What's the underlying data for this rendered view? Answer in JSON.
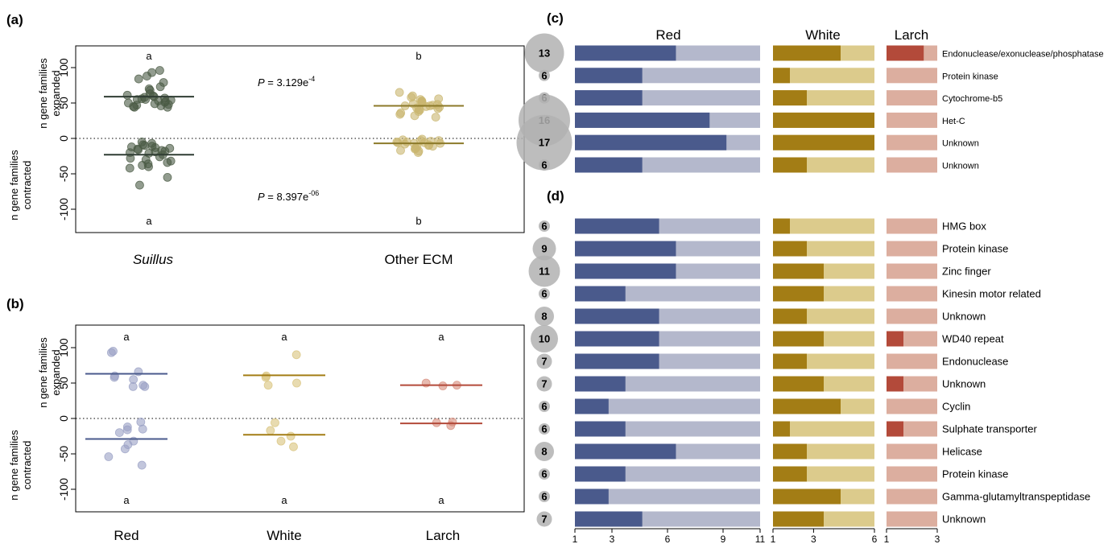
{
  "colors": {
    "suillus": "#4a5a44",
    "other_ecm": "#c9b66f",
    "red": "#4a5a8c",
    "red_light": "#b4b8cc",
    "white": "#a37d15",
    "white_light": "#dccb8c",
    "larch": "#b34a3a",
    "larch_light": "#dcae9f",
    "circle": "#b2b2b2"
  },
  "panel_a": {
    "label": "(a)",
    "y_label_top": [
      "n gene families",
      "expanded"
    ],
    "y_label_bottom": [
      "n gene families",
      "contracted"
    ],
    "y_ticks": [
      "100",
      "50",
      "0",
      "-50",
      "-100"
    ],
    "group_labels": [
      "Suillus",
      "Other ECM"
    ],
    "p_top": {
      "prefix": "P",
      "text": " = 3.129e",
      "sup": "-4"
    },
    "p_bottom": {
      "prefix": "P",
      "text": " = 8.397e",
      "sup": "-06"
    },
    "letters_top": [
      "a",
      "b"
    ],
    "letters_bottom": [
      "a",
      "b"
    ]
  },
  "panel_b": {
    "label": "(b)",
    "y_label_top": [
      "n gene families",
      "expanded"
    ],
    "y_label_bottom": [
      "n gene families",
      "contracted"
    ],
    "y_ticks": [
      "100",
      "50",
      "0",
      "-50",
      "-100"
    ],
    "group_labels": [
      "Red",
      "White",
      "Larch"
    ],
    "letters_top": [
      "a",
      "a",
      "a"
    ],
    "letters_bottom": [
      "a",
      "a",
      "a"
    ]
  },
  "panel_c": {
    "label": "(c)",
    "column_headers": [
      "Red",
      "White",
      "Larch"
    ]
  },
  "panel_d": {
    "label": "(d)",
    "x_ticks_red": [
      "1",
      "3",
      "6",
      "9",
      "11"
    ],
    "x_ticks_white": [
      "1",
      "3",
      "6"
    ],
    "x_ticks_larch": [
      "1",
      "3"
    ]
  },
  "chart_data": [
    {
      "panel": "a",
      "type": "scatter",
      "ylim": [
        -125,
        125
      ],
      "series": [
        {
          "name": "Suillus",
          "expanded": [
            96,
            93,
            88,
            84,
            79,
            73,
            70,
            68,
            63,
            61,
            60,
            59,
            58,
            57,
            56,
            55,
            55,
            54,
            53,
            52,
            51,
            50,
            49,
            48,
            47,
            46,
            45,
            44,
            44
          ],
          "contracted": [
            -5,
            -7,
            -9,
            -10,
            -11,
            -12,
            -13,
            -14,
            -15,
            -16,
            -17,
            -18,
            -19,
            -20,
            -21,
            -23,
            -26,
            -28,
            -30,
            -32,
            -34,
            -36,
            -38,
            -40,
            -42,
            -55,
            -66
          ],
          "median_expanded": 59,
          "median_contracted": -23
        },
        {
          "name": "Other ECM",
          "expanded": [
            65,
            60,
            58,
            56,
            55,
            53,
            52,
            51,
            50,
            49,
            48,
            47,
            46,
            46,
            45,
            44,
            43,
            42,
            41,
            40,
            38,
            36,
            34,
            32,
            30
          ],
          "contracted": [
            -1,
            -2,
            -3,
            -4,
            -5,
            -6,
            -6,
            -7,
            -8,
            -9,
            -10,
            -11,
            -12,
            -13,
            -14,
            -15,
            -17,
            -18,
            -20,
            -3,
            -5,
            -7
          ],
          "median_expanded": 46,
          "median_contracted": -7
        }
      ]
    },
    {
      "panel": "b",
      "type": "scatter",
      "ylim": [
        -125,
        125
      ],
      "series": [
        {
          "name": "Red",
          "expanded": [
            95,
            93,
            66,
            60,
            58,
            55,
            47,
            45,
            45
          ],
          "contracted": [
            -5,
            -12,
            -15,
            -16,
            -20,
            -32,
            -37,
            -43,
            -54,
            -66
          ],
          "median_expanded": 63,
          "median_contracted": -29
        },
        {
          "name": "White",
          "expanded": [
            90,
            60,
            58,
            50,
            47
          ],
          "contracted": [
            -6,
            -17,
            -25,
            -32,
            -40
          ],
          "median_expanded": 61,
          "median_contracted": -23
        },
        {
          "name": "Larch",
          "expanded": [
            50,
            47,
            46
          ],
          "contracted": [
            -5,
            -6,
            -10
          ],
          "median_expanded": 47,
          "median_contracted": -7
        }
      ]
    },
    {
      "panel": "c",
      "type": "bar",
      "red_max": 11,
      "white_max": 6,
      "larch_max": 3,
      "rows": [
        {
          "count": 13,
          "red": 6,
          "white": 4,
          "larch": 2.2,
          "label": "Endonuclease/exonuclease/phosphatase"
        },
        {
          "count": 6,
          "red": 4,
          "white": 1,
          "larch": 0,
          "label": "Protein kinase"
        },
        {
          "count": 6,
          "red": 4,
          "white": 2,
          "larch": 0,
          "label": "Cytochrome-b5"
        },
        {
          "count": 16,
          "red": 8,
          "white": 6,
          "larch": 0,
          "label": "Het-C"
        },
        {
          "count": 17,
          "red": 9,
          "white": 6,
          "larch": 0,
          "label": "Unknown"
        },
        {
          "count": 6,
          "red": 4,
          "white": 2,
          "larch": 0,
          "label": "Unknown"
        }
      ]
    },
    {
      "panel": "d",
      "type": "bar",
      "red_max": 11,
      "white_max": 6,
      "larch_max": 3,
      "rows": [
        {
          "count": 6,
          "red": 5,
          "white": 1,
          "larch": 0,
          "label": "HMG box"
        },
        {
          "count": 9,
          "red": 6,
          "white": 2,
          "larch": 0,
          "label": "Protein kinase"
        },
        {
          "count": 11,
          "red": 6,
          "white": 3,
          "larch": 0,
          "label": "Zinc finger"
        },
        {
          "count": 6,
          "red": 3,
          "white": 3,
          "larch": 0,
          "label": "Kinesin motor related"
        },
        {
          "count": 8,
          "red": 5,
          "white": 2,
          "larch": 0,
          "label": "Unknown"
        },
        {
          "count": 10,
          "red": 5,
          "white": 3,
          "larch": 1,
          "label": "WD40 repeat"
        },
        {
          "count": 7,
          "red": 5,
          "white": 2,
          "larch": 0,
          "label": "Endonuclease"
        },
        {
          "count": 7,
          "red": 3,
          "white": 3,
          "larch": 1,
          "label": "Unknown"
        },
        {
          "count": 6,
          "red": 2,
          "white": 4,
          "larch": 0,
          "label": "Cyclin"
        },
        {
          "count": 6,
          "red": 3,
          "white": 1,
          "larch": 1,
          "label": "Sulphate transporter"
        },
        {
          "count": 8,
          "red": 6,
          "white": 2,
          "larch": 0,
          "label": "Helicase"
        },
        {
          "count": 6,
          "red": 3,
          "white": 2,
          "larch": 0,
          "label": "Protein kinase"
        },
        {
          "count": 6,
          "red": 2,
          "white": 4,
          "larch": 0,
          "label": "Gamma-glutamyltranspeptidase"
        },
        {
          "count": 7,
          "red": 4,
          "white": 3,
          "larch": 0,
          "label": "Unknown"
        }
      ]
    }
  ]
}
